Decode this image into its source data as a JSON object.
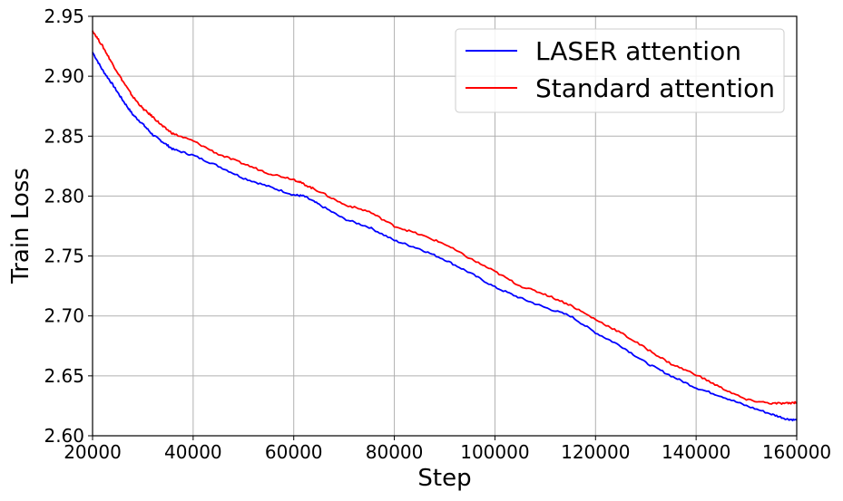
{
  "chart_data": {
    "type": "line",
    "title": "",
    "xlabel": "Step",
    "ylabel": "Train Loss",
    "xlim": [
      20000,
      160000
    ],
    "ylim": [
      2.6,
      2.95
    ],
    "xticks": [
      20000,
      40000,
      60000,
      80000,
      100000,
      120000,
      140000,
      160000
    ],
    "xtick_labels": [
      "20000",
      "40000",
      "60000",
      "80000",
      "100000",
      "120000",
      "140000",
      "160000"
    ],
    "yticks": [
      2.6,
      2.65,
      2.7,
      2.75,
      2.8,
      2.85,
      2.9,
      2.95
    ],
    "ytick_labels": [
      "2.60",
      "2.65",
      "2.70",
      "2.75",
      "2.80",
      "2.85",
      "2.90",
      "2.95"
    ],
    "grid": true,
    "legend_position": "top-right",
    "series": [
      {
        "name": "LASER attention",
        "color": "#0000ff",
        "x": [
          20000,
          22000,
          24000,
          26000,
          28000,
          30000,
          32000,
          34000,
          36000,
          40000,
          45000,
          50000,
          55000,
          60000,
          62000,
          65000,
          70000,
          75000,
          80000,
          85000,
          90000,
          95000,
          100000,
          105000,
          110000,
          115000,
          120000,
          125000,
          130000,
          135000,
          140000,
          145000,
          150000,
          155000,
          158000,
          160000
        ],
        "values": [
          2.92,
          2.905,
          2.893,
          2.88,
          2.868,
          2.86,
          2.851,
          2.845,
          2.839,
          2.834,
          2.825,
          2.815,
          2.808,
          2.801,
          2.8,
          2.793,
          2.781,
          2.774,
          2.763,
          2.756,
          2.747,
          2.736,
          2.724,
          2.715,
          2.707,
          2.7,
          2.686,
          2.675,
          2.661,
          2.65,
          2.64,
          2.633,
          2.625,
          2.618,
          2.614,
          2.613
        ]
      },
      {
        "name": "Standard attention",
        "color": "#ff0000",
        "x": [
          20000,
          22000,
          24000,
          26000,
          28000,
          30000,
          32000,
          34000,
          36000,
          40000,
          45000,
          50000,
          55000,
          60000,
          62000,
          65000,
          70000,
          75000,
          80000,
          85000,
          90000,
          95000,
          100000,
          105000,
          110000,
          115000,
          120000,
          125000,
          130000,
          135000,
          140000,
          145000,
          150000,
          155000,
          158000,
          160000
        ],
        "values": [
          2.938,
          2.925,
          2.91,
          2.896,
          2.883,
          2.873,
          2.866,
          2.858,
          2.852,
          2.846,
          2.835,
          2.827,
          2.819,
          2.814,
          2.81,
          2.804,
          2.793,
          2.787,
          2.775,
          2.768,
          2.76,
          2.748,
          2.737,
          2.725,
          2.718,
          2.709,
          2.697,
          2.686,
          2.673,
          2.66,
          2.651,
          2.64,
          2.63,
          2.627,
          2.627,
          2.628
        ]
      }
    ]
  }
}
